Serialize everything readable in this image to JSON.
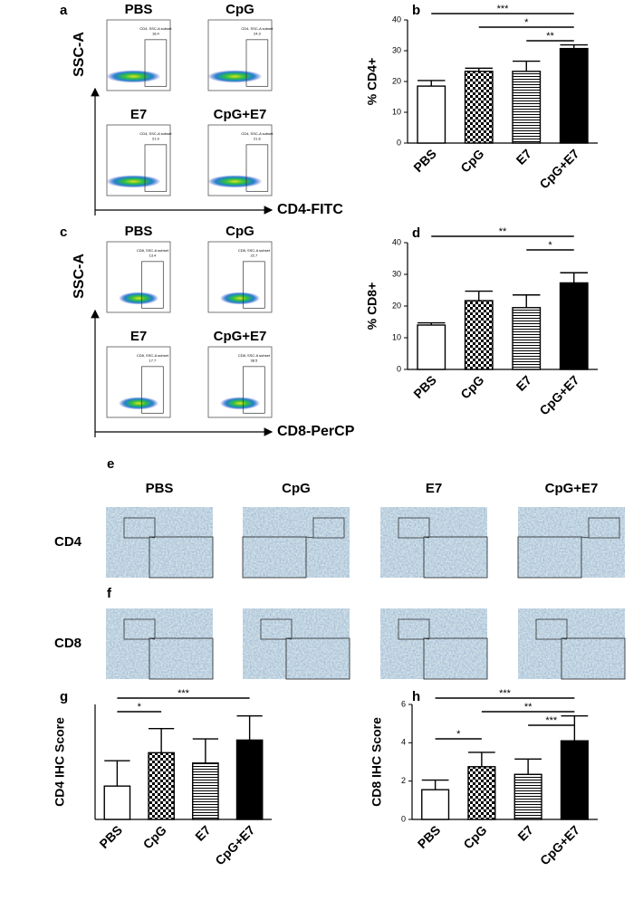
{
  "flow": [
    {
      "letter": "a",
      "y_label": "SSC-A",
      "x_label": "CD4-FITC",
      "plots": [
        {
          "title": "PBS",
          "gate": "CD4, SSC-A subset",
          "pct": 18.4
        },
        {
          "title": "CpG",
          "gate": "CD4, SSC-A subset",
          "pct": 24.3
        },
        {
          "title": "E7",
          "gate": "CD4, SSC-A subset",
          "pct": 21.9
        },
        {
          "title": "CpG+E7",
          "gate": "CD4, SSC-A subset",
          "pct": 21.6
        }
      ]
    },
    {
      "letter": "c",
      "y_label": "SSC-A",
      "x_label": "CD8-PerCP",
      "plots": [
        {
          "title": "PBS",
          "gate": "CD8, SSC-A subset",
          "pct": 13.4
        },
        {
          "title": "CpG",
          "gate": "CD8, SSC-A subset",
          "pct": 22.7
        },
        {
          "title": "E7",
          "gate": "CD8, SSC-A subset",
          "pct": 17.7
        },
        {
          "title": "CpG+E7",
          "gate": "CD8, SSC-A subset",
          "pct": 38.5
        }
      ]
    }
  ],
  "ihc": {
    "letter_top": "e",
    "letter_bottom": "f",
    "columns": [
      "PBS",
      "CpG",
      "E7",
      "CpG+E7"
    ],
    "rows": [
      "CD4",
      "CD8"
    ]
  },
  "chart_data": [
    {
      "type": "bar",
      "letter": "b",
      "y_label": "% CD4+",
      "categories": [
        "PBS",
        "CpG",
        "E7",
        "CpG+E7"
      ],
      "values": [
        18.5,
        23.3,
        23.3,
        30.7
      ],
      "errors": [
        1.8,
        1.0,
        3.3,
        1.2
      ],
      "patterns": [
        "none",
        "checker",
        "hlines",
        "solid"
      ],
      "ylim": [
        0,
        40
      ],
      "yticks": [
        0,
        10,
        20,
        30,
        40
      ],
      "significance": [
        {
          "label": "***",
          "between": [
            0,
            3
          ]
        },
        {
          "label": "*",
          "between": [
            1,
            3
          ]
        },
        {
          "label": "**",
          "between": [
            2,
            3
          ]
        }
      ]
    },
    {
      "type": "bar",
      "letter": "d",
      "y_label": "% CD8+",
      "categories": [
        "PBS",
        "CpG",
        "E7",
        "CpG+E7"
      ],
      "values": [
        14.0,
        21.7,
        19.5,
        27.3
      ],
      "errors": [
        0.7,
        3.0,
        4.0,
        3.2
      ],
      "patterns": [
        "none",
        "checker",
        "hlines",
        "solid"
      ],
      "ylim": [
        0,
        40
      ],
      "yticks": [
        0,
        10,
        20,
        30,
        40
      ],
      "significance": [
        {
          "label": "**",
          "between": [
            0,
            3
          ]
        },
        {
          "label": "*",
          "between": [
            2,
            3
          ]
        }
      ]
    },
    {
      "type": "bar",
      "letter": "g",
      "y_label": "CD4 IHC Score",
      "categories": [
        "PBS",
        "CpG",
        "E7",
        "CpG+E7"
      ],
      "values": [
        1.45,
        2.9,
        2.45,
        3.45
      ],
      "errors": [
        1.1,
        1.05,
        1.05,
        1.05
      ],
      "patterns": [
        "none",
        "checker",
        "hlines",
        "solid"
      ],
      "ylim": [
        0,
        5
      ],
      "significance": [
        {
          "label": "***",
          "between": [
            0,
            3
          ]
        },
        {
          "label": "*",
          "between": [
            0,
            1
          ]
        }
      ]
    },
    {
      "type": "bar",
      "letter": "h",
      "y_label": "CD8 IHC Score",
      "categories": [
        "PBS",
        "CpG",
        "E7",
        "CpG+E7"
      ],
      "values": [
        1.55,
        2.75,
        2.35,
        4.1
      ],
      "errors": [
        0.5,
        0.75,
        0.8,
        1.3
      ],
      "patterns": [
        "none",
        "checker",
        "hlines",
        "solid"
      ],
      "ylim": [
        0,
        6
      ],
      "yticks": [
        0,
        2,
        4,
        6
      ],
      "significance": [
        {
          "label": "***",
          "between": [
            0,
            3
          ]
        },
        {
          "label": "**",
          "between": [
            1,
            3
          ]
        },
        {
          "label": "***",
          "between": [
            2,
            3
          ]
        },
        {
          "label": "*",
          "between": [
            0,
            1
          ]
        }
      ]
    }
  ]
}
